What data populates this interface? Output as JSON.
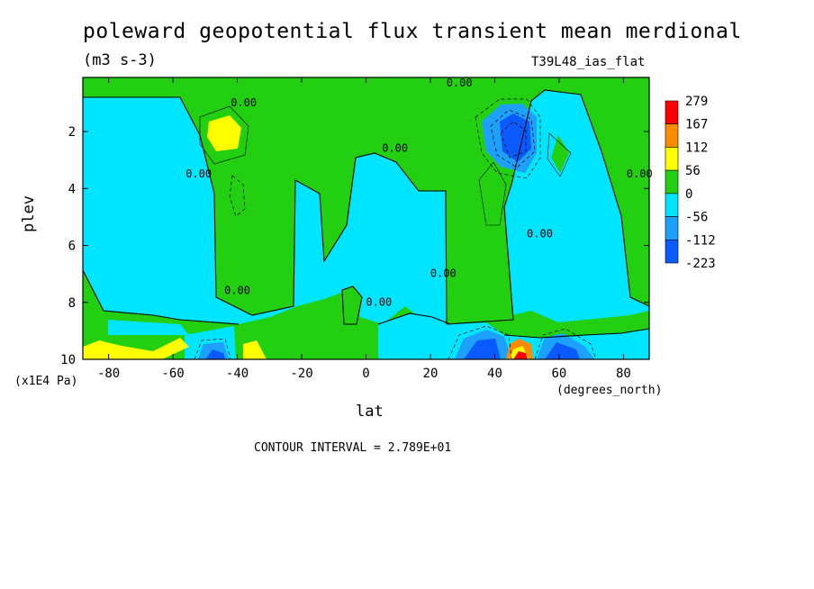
{
  "title": "poleward geopotential flux transient mean merdional",
  "units": "(m3 s-3)",
  "run_label": "T39L48_ias_flat",
  "x_axis": {
    "label": "lat",
    "sublabel": "(degrees_north)"
  },
  "y_axis": {
    "label": "plev",
    "sublabel": "(x1E4 Pa)"
  },
  "contour_interval": "CONTOUR INTERVAL = 2.789E+01",
  "colors": {
    "level_279": "#ff0000",
    "level_167": "#ff8c00",
    "level_112": "#ffff00",
    "level_56": "#22d011",
    "level_0": "#00e5ff",
    "level_m56": "#1ea0ff",
    "level_m112": "#0a5aff",
    "frame": "#000000"
  },
  "chart_data": {
    "type": "heatmap",
    "x_ticks": [
      -80,
      -60,
      -40,
      -20,
      0,
      20,
      40,
      60,
      80
    ],
    "x_tick_labels": [
      "-80",
      "-60",
      "-40",
      "-20",
      "0",
      "20",
      "40",
      "60",
      "80"
    ],
    "y_ticks": [
      2,
      4,
      6,
      8,
      10
    ],
    "y_tick_labels": [
      "2",
      "4",
      "6",
      "8",
      "10"
    ],
    "xlim": [
      -88,
      88
    ],
    "ylim": [
      10,
      0.1
    ],
    "colorbar": {
      "labels": [
        "279",
        "167",
        "112",
        "56",
        "0",
        "-56",
        "-112",
        "-223"
      ],
      "colors": [
        "#ff0000",
        "#ff8c00",
        "#ffff00",
        "#22d011",
        "#00e5ff",
        "#1ea0ff",
        "#0a5aff"
      ]
    },
    "contour_labels": [
      {
        "text": "0.00",
        "lat": -38,
        "plev": 1.0
      },
      {
        "text": "0.00",
        "lat": 29,
        "plev": 0.3
      },
      {
        "text": "0.00",
        "lat": 9,
        "plev": 2.6
      },
      {
        "text": "0.00",
        "lat": -52,
        "plev": 3.5
      },
      {
        "text": "0.00",
        "lat": 85,
        "plev": 3.5
      },
      {
        "text": "0.00",
        "lat": 54,
        "plev": 5.6
      },
      {
        "text": "0.00",
        "lat": 24,
        "plev": 7.0
      },
      {
        "text": "0.00",
        "lat": -40,
        "plev": 7.6
      },
      {
        "text": "0.00",
        "lat": 4,
        "plev": 8.0
      }
    ],
    "features": [
      {
        "type": "max",
        "lat": -45,
        "plev": 2.0,
        "value_class": "56-112"
      },
      {
        "type": "min",
        "lat": 46,
        "plev": 2.2,
        "value_class": "-112"
      },
      {
        "type": "max",
        "lat": 47,
        "plev": 9.8,
        "value_class": "279"
      },
      {
        "type": "min",
        "lat": 37,
        "plev": 9.7,
        "value_class": "-112"
      },
      {
        "type": "min",
        "lat": 62,
        "plev": 9.7,
        "value_class": "-112"
      },
      {
        "type": "min",
        "lat": -47,
        "plev": 9.8,
        "value_class": "-112"
      },
      {
        "type": "max",
        "lat": -85,
        "plev": 9.8,
        "value_class": "56-112"
      },
      {
        "type": "max",
        "lat": -37,
        "plev": 9.8,
        "value_class": "56-112"
      }
    ]
  }
}
